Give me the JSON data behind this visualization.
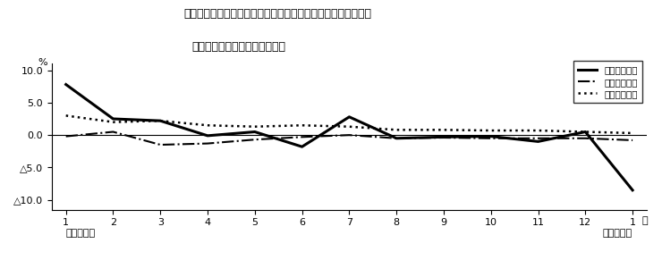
{
  "title_line1": "第４図　賃金、労働時間、常用雇用指数　対前年同月比の推移",
  "title_line2": "（規模５人以上　調査産業計）",
  "xlabel_right": "月",
  "ylabel": "%",
  "x_labels": [
    "1",
    "2",
    "3",
    "4",
    "5",
    "6",
    "7",
    "8",
    "9",
    "10",
    "11",
    "12",
    "1"
  ],
  "year_left": "平成２３年",
  "year_right": "平成２４年",
  "ylim": [
    -11.5,
    11.0
  ],
  "yticks": [
    10.0,
    5.0,
    0.0,
    -5.0,
    -10.0
  ],
  "series": [
    {
      "name": "現金給与総額",
      "linestyle": "solid",
      "linewidth": 2.2,
      "color": "#000000",
      "data": [
        7.8,
        2.5,
        2.2,
        -0.1,
        0.5,
        -1.8,
        2.8,
        -0.5,
        -0.3,
        -0.2,
        -1.0,
        0.5,
        -8.5
      ]
    },
    {
      "name": "総実労働時間",
      "linestyle": "dashdot",
      "linewidth": 1.5,
      "color": "#000000",
      "data": [
        -0.2,
        0.5,
        -1.5,
        -1.3,
        -0.7,
        -0.3,
        0.0,
        -0.5,
        -0.4,
        -0.5,
        -0.5,
        -0.5,
        -0.8
      ]
    },
    {
      "name": "常用雇用指数",
      "linestyle": "dotted",
      "linewidth": 1.8,
      "color": "#000000",
      "data": [
        3.0,
        2.0,
        2.2,
        1.5,
        1.3,
        1.5,
        1.3,
        0.8,
        0.8,
        0.7,
        0.7,
        0.5,
        0.3
      ]
    }
  ],
  "background_color": "#ffffff"
}
